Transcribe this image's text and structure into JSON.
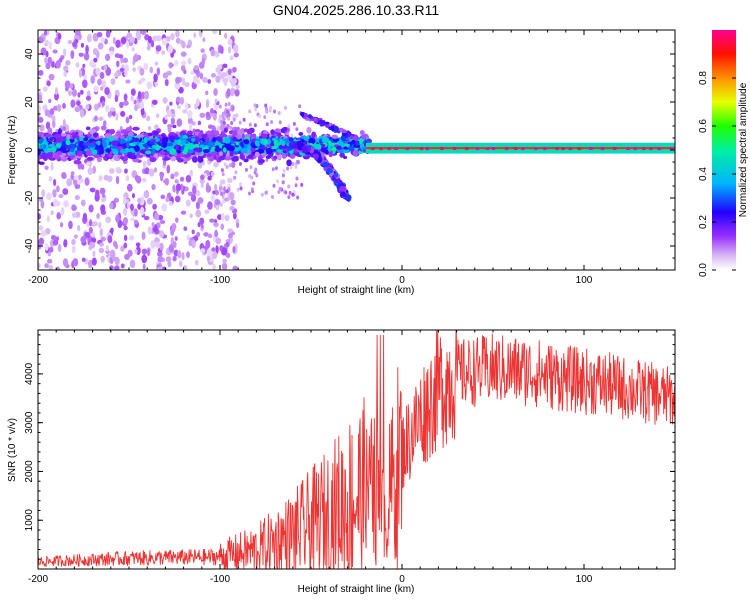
{
  "title": "GN04.2025.286.10.33.R11",
  "chart_data": [
    {
      "type": "heatmap",
      "xlabel": "Height of straight line (km)",
      "ylabel": "Frequency (Hz)",
      "xlim": [
        -200,
        150
      ],
      "ylim": [
        -50,
        50
      ],
      "x_ticks": [
        -200,
        -100,
        0,
        100
      ],
      "y_ticks": [
        -40,
        -20,
        0,
        20,
        40
      ],
      "colorbar": {
        "label": "Normalized spectral amplitude",
        "range": [
          0,
          1
        ],
        "ticks": [
          "0.0",
          "0.2",
          "0.4",
          "0.6",
          "0.8"
        ],
        "colors": [
          "#ffffff",
          "#c8a0f0",
          "#8800ff",
          "#0000ff",
          "#00c8ff",
          "#00ff80",
          "#ffff00",
          "#ff8000",
          "#ff0000",
          "#ff0080"
        ]
      },
      "features": {
        "main_band_center_hz": 2,
        "main_band_halfwidth_hz": 5,
        "curved_arm_from_km": -60,
        "curved_arm_to_km": -30,
        "curved_arm_to_hz": -20,
        "scatter_region_km": [
          -200,
          -100
        ],
        "narrow_line_from_km": -20
      }
    },
    {
      "type": "line",
      "xlabel": "Height of straight line (km)",
      "ylabel": "SNR (10 * v/v)",
      "xlim": [
        -200,
        150
      ],
      "ylim": [
        0,
        4900
      ],
      "x_ticks": [
        -200,
        -100,
        0,
        100
      ],
      "y_ticks": [
        1000,
        2000,
        3000,
        4000
      ],
      "color": "#ee3333",
      "trend": {
        "x": [
          -200,
          -150,
          -100,
          -80,
          -60,
          -40,
          -25,
          -15,
          -10,
          -5,
          0,
          10,
          20,
          30,
          50,
          70,
          90,
          110,
          130,
          150
        ],
        "y": [
          150,
          220,
          250,
          400,
          700,
          1100,
          1500,
          1600,
          1000,
          1800,
          2400,
          3100,
          3700,
          4000,
          4100,
          4050,
          3900,
          3800,
          3650,
          3500
        ]
      }
    }
  ]
}
